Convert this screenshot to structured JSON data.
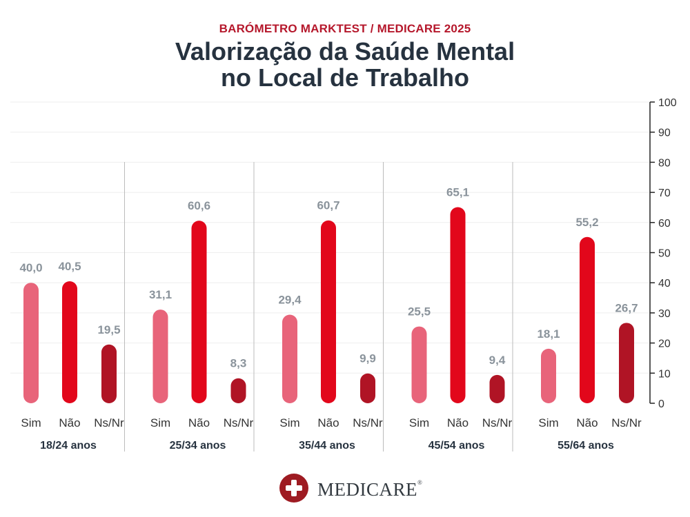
{
  "header": {
    "kicker": "BARÓMETRO MARKTEST / MEDICARE 2025",
    "title_line1": "Valorização da Saúde Mental",
    "title_line2": "no Local de Trabalho"
  },
  "logo": {
    "text": "MEDICARE",
    "reg": "®"
  },
  "colors": {
    "sim": "#e8647a",
    "nao": "#e2071b",
    "nsnr": "#b01425",
    "value_label": "#8a939b",
    "axis": "#222222",
    "grid": "#eeeeee",
    "separator": "#bbbbbb"
  },
  "chart_data": {
    "type": "bar",
    "title": "Valorização da Saúde Mental no Local de Trabalho",
    "categories": [
      "18/24 anos",
      "25/34 anos",
      "35/44 anos",
      "45/54 anos",
      "55/64 anos"
    ],
    "bar_labels": [
      "Sim",
      "Não",
      "Ns/Nr"
    ],
    "series": [
      {
        "name": "Sim",
        "values": [
          40.0,
          31.1,
          29.4,
          25.5,
          18.1
        ]
      },
      {
        "name": "Não",
        "values": [
          40.5,
          60.6,
          60.7,
          65.1,
          55.2
        ]
      },
      {
        "name": "Ns/Nr",
        "values": [
          19.5,
          8.3,
          9.9,
          9.4,
          26.7
        ]
      }
    ],
    "value_labels": [
      [
        "40,0",
        "40,5",
        "19,5"
      ],
      [
        "31,1",
        "60,6",
        "8,3"
      ],
      [
        "29,4",
        "60,7",
        "9,9"
      ],
      [
        "25,5",
        "65,1",
        "9,4"
      ],
      [
        "18,1",
        "55,2",
        "26,7"
      ]
    ],
    "ylim": [
      0,
      100
    ],
    "yticks": [
      0,
      10,
      20,
      30,
      40,
      50,
      60,
      70,
      80,
      90,
      100
    ],
    "y_axis_side": "right",
    "grid": true,
    "xlabel": "",
    "ylabel": ""
  }
}
